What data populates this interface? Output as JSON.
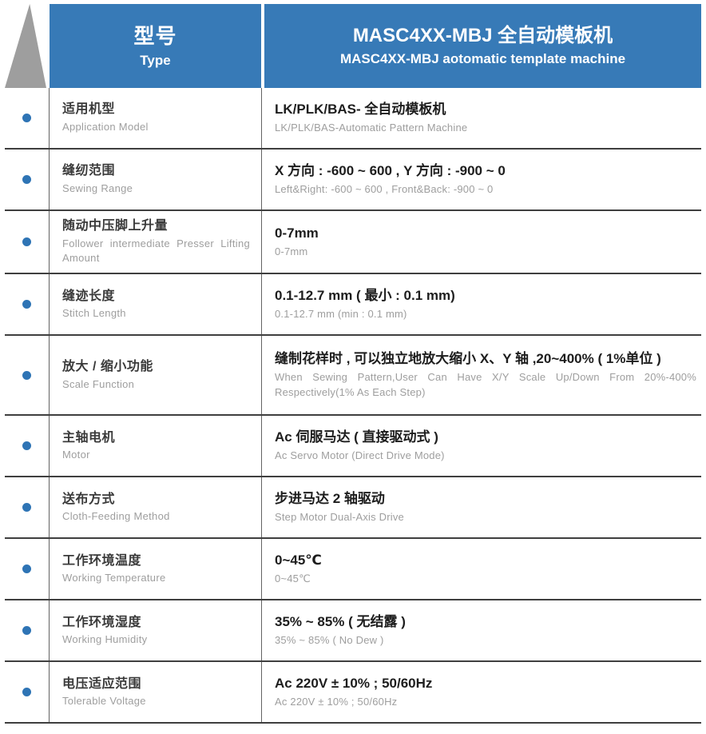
{
  "header": {
    "type_zh": "型号",
    "type_en": "Type",
    "model_zh": "MASC4XX-MBJ 全自动模板机",
    "model_en": "MASC4XX-MBJ aotomatic template machine"
  },
  "rows": [
    {
      "label_zh": "适用机型",
      "label_en": "Application Model",
      "value_zh": "LK/PLK/BAS- 全自动模板机",
      "value_en": "LK/PLK/BAS-Automatic Pattern Machine"
    },
    {
      "label_zh": "缝纫范围",
      "label_en": "Sewing Range",
      "value_zh": "X 方向 : -600 ~ 600 , Y 方向 : -900 ~ 0",
      "value_en": "Left&Right: -600 ~ 600 , Front&Back: -900 ~ 0"
    },
    {
      "label_zh": "随动中压脚上升量",
      "label_en": "Follower intermediate Presser Lifting Amount",
      "value_zh": "0-7mm",
      "value_en": "0-7mm"
    },
    {
      "label_zh": "缝迹长度",
      "label_en": "Stitch Length",
      "value_zh": "0.1-12.7 mm ( 最小 : 0.1 mm)",
      "value_en": "0.1-12.7 mm (min : 0.1 mm)"
    },
    {
      "label_zh": "放大 / 缩小功能",
      "label_en": "Scale Function",
      "value_zh": "缝制花样时 , 可以独立地放大缩小 X、Y 轴 ,20~400% ( 1%单位 )",
      "value_en": "When Sewing Pattern,User Can Have X/Y Scale Up/Down From 20%-400% Respectively(1% As Each Step)"
    },
    {
      "label_zh": "主轴电机",
      "label_en": "Motor",
      "value_zh": "Ac 伺服马达 ( 直接驱动式 )",
      "value_en": "Ac Servo Motor (Direct Drive Mode)"
    },
    {
      "label_zh": "送布方式",
      "label_en": "Cloth-Feeding Method",
      "value_zh": "步进马达 2 轴驱动",
      "value_en": "Step Motor Dual-Axis Drive"
    },
    {
      "label_zh": "工作环境温度",
      "label_en": "Working Temperature",
      "value_zh": "0~45℃",
      "value_en": "0~45℃"
    },
    {
      "label_zh": "工作环境湿度",
      "label_en": "Working Humidity",
      "value_zh": "35% ~ 85% ( 无结露 )",
      "value_en": "35% ~ 85% ( No Dew )"
    },
    {
      "label_zh": "电压适应范围",
      "label_en": "Tolerable Voltage",
      "value_zh": "Ac 220V ± 10% ; 50/60Hz",
      "value_en": "Ac 220V ± 10% ; 50/60Hz"
    }
  ],
  "colors": {
    "accent_blue": "#377ab7",
    "bullet_blue": "#2e74b5",
    "ribbon_gray": "#9e9e9e",
    "grid_line": "#3f3f3f"
  }
}
